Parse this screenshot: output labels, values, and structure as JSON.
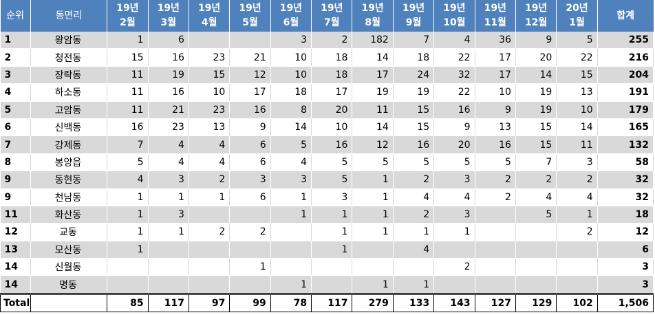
{
  "table": {
    "headers": {
      "rank": "순위",
      "name": "동면리",
      "months": [
        [
          "19년",
          "2월"
        ],
        [
          "19년",
          "3월"
        ],
        [
          "19년",
          "4월"
        ],
        [
          "19년",
          "5월"
        ],
        [
          "19년",
          "6월"
        ],
        [
          "19년",
          "7월"
        ],
        [
          "19년",
          "8월"
        ],
        [
          "19년",
          "9월"
        ],
        [
          "19년",
          "10월"
        ],
        [
          "19년",
          "11월"
        ],
        [
          "19년",
          "12월"
        ],
        [
          "20년",
          "1월"
        ]
      ],
      "total": "합계"
    },
    "rows": [
      {
        "rank": "1",
        "name": "왕암동",
        "values": [
          "1",
          "6",
          "",
          "",
          "3",
          "2",
          "182",
          "7",
          "4",
          "36",
          "9",
          "5"
        ],
        "total": "255"
      },
      {
        "rank": "2",
        "name": "청전동",
        "values": [
          "15",
          "16",
          "23",
          "21",
          "10",
          "18",
          "14",
          "18",
          "22",
          "17",
          "20",
          "22"
        ],
        "total": "216"
      },
      {
        "rank": "3",
        "name": "장락동",
        "values": [
          "11",
          "19",
          "15",
          "12",
          "10",
          "18",
          "17",
          "24",
          "32",
          "17",
          "14",
          "15"
        ],
        "total": "204"
      },
      {
        "rank": "4",
        "name": "하소동",
        "values": [
          "11",
          "16",
          "10",
          "17",
          "18",
          "17",
          "19",
          "19",
          "22",
          "10",
          "19",
          "13"
        ],
        "total": "191"
      },
      {
        "rank": "5",
        "name": "고암동",
        "values": [
          "11",
          "21",
          "23",
          "16",
          "8",
          "20",
          "11",
          "15",
          "16",
          "9",
          "19",
          "10"
        ],
        "total": "179"
      },
      {
        "rank": "6",
        "name": "신백동",
        "values": [
          "16",
          "23",
          "13",
          "9",
          "14",
          "10",
          "14",
          "15",
          "9",
          "13",
          "15",
          "14"
        ],
        "total": "165"
      },
      {
        "rank": "7",
        "name": "강제동",
        "values": [
          "7",
          "4",
          "4",
          "6",
          "5",
          "16",
          "12",
          "16",
          "20",
          "16",
          "15",
          "11"
        ],
        "total": "132"
      },
      {
        "rank": "8",
        "name": "봉양읍",
        "values": [
          "5",
          "4",
          "4",
          "6",
          "4",
          "5",
          "5",
          "5",
          "5",
          "5",
          "7",
          "3"
        ],
        "total": "58"
      },
      {
        "rank": "9",
        "name": "동현동",
        "values": [
          "4",
          "3",
          "2",
          "3",
          "3",
          "5",
          "1",
          "2",
          "3",
          "2",
          "2",
          "2"
        ],
        "total": "32"
      },
      {
        "rank": "9",
        "name": "천남동",
        "values": [
          "1",
          "1",
          "1",
          "6",
          "1",
          "3",
          "1",
          "4",
          "4",
          "2",
          "4",
          "4"
        ],
        "total": "32"
      },
      {
        "rank": "11",
        "name": "화산동",
        "values": [
          "1",
          "3",
          "",
          "",
          "1",
          "1",
          "1",
          "2",
          "3",
          "",
          "5",
          "1"
        ],
        "total": "18"
      },
      {
        "rank": "12",
        "name": "교동",
        "values": [
          "1",
          "1",
          "2",
          "2",
          "",
          "1",
          "1",
          "1",
          "1",
          "",
          "",
          "2"
        ],
        "total": "12"
      },
      {
        "rank": "13",
        "name": "모산동",
        "values": [
          "1",
          "",
          "",
          "",
          "",
          "1",
          "",
          "4",
          "",
          "",
          "",
          ""
        ],
        "total": "6"
      },
      {
        "rank": "14",
        "name": "신월동",
        "values": [
          "",
          "",
          "",
          "1",
          "",
          "",
          "",
          "",
          "2",
          "",
          "",
          ""
        ],
        "total": "3"
      },
      {
        "rank": "14",
        "name": "명동",
        "values": [
          "",
          "",
          "",
          "",
          "1",
          "",
          "1",
          "1",
          "",
          "",
          "",
          ""
        ],
        "total": "3"
      }
    ],
    "footer": {
      "label": "Total",
      "blank": "",
      "values": [
        "85",
        "117",
        "97",
        "99",
        "78",
        "117",
        "279",
        "133",
        "143",
        "127",
        "129",
        "102"
      ],
      "total": "1,506"
    }
  }
}
